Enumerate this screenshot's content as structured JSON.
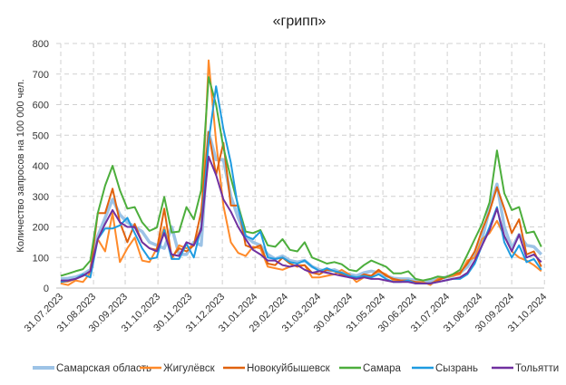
{
  "chart_data": {
    "type": "line",
    "title": "«грипп»",
    "ylabel": "Количество запросов на 100 000 чел.",
    "xlabel": "",
    "ylim": [
      0,
      800
    ],
    "yticks": [
      "0",
      "100",
      "200",
      "300",
      "400",
      "500",
      "600",
      "700",
      "800"
    ],
    "x_start": "2023-07-31",
    "x_step_days": 7,
    "xtick_labels": [
      {
        "label": "31.07.2023",
        "date": "2023-07-31"
      },
      {
        "label": "31.08.2023",
        "date": "2023-08-31"
      },
      {
        "label": "30.09.2023",
        "date": "2023-09-30"
      },
      {
        "label": "31.10.2023",
        "date": "2023-10-31"
      },
      {
        "label": "30.11.2023",
        "date": "2023-11-30"
      },
      {
        "label": "31.12.2023",
        "date": "2023-12-31"
      },
      {
        "label": "31.01.2024",
        "date": "2024-01-31"
      },
      {
        "label": "29.02.2024",
        "date": "2024-02-29"
      },
      {
        "label": "31.03.2024",
        "date": "2024-03-31"
      },
      {
        "label": "30.04.2024",
        "date": "2024-04-30"
      },
      {
        "label": "31.05.2024",
        "date": "2024-05-31"
      },
      {
        "label": "30.06.2024",
        "date": "2024-06-30"
      },
      {
        "label": "31.07.2024",
        "date": "2024-07-31"
      },
      {
        "label": "31.08.2024",
        "date": "2024-08-31"
      },
      {
        "label": "30.09.2024",
        "date": "2024-09-30"
      },
      {
        "label": "31.10.2024",
        "date": "2024-10-31"
      }
    ],
    "grid": true,
    "legend_position": "bottom",
    "series": [
      {
        "name": "Самарская область",
        "color": "#9dc3e6",
        "values": [
          30,
          32,
          36,
          45,
          60,
          170,
          230,
          290,
          240,
          215,
          200,
          185,
          150,
          140,
          130,
          200,
          110,
          110,
          150,
          140,
          510,
          420,
          420,
          300,
          230,
          170,
          150,
          140,
          110,
          95,
          105,
          90,
          85,
          90,
          70,
          60,
          55,
          60,
          50,
          45,
          40,
          50,
          55,
          50,
          40,
          32,
          30,
          30,
          25,
          20,
          22,
          30,
          35,
          40,
          50,
          70,
          110,
          160,
          260,
          340,
          200,
          130,
          175,
          140,
          135,
          110
        ]
      },
      {
        "name": "Жигулёвск",
        "color": "#ff8a2a",
        "values": [
          15,
          10,
          25,
          20,
          50,
          160,
          120,
          245,
          85,
          130,
          165,
          90,
          85,
          130,
          200,
          95,
          140,
          130,
          140,
          200,
          745,
          480,
          270,
          150,
          115,
          105,
          135,
          130,
          70,
          65,
          60,
          70,
          75,
          75,
          35,
          35,
          40,
          45,
          60,
          45,
          20,
          35,
          40,
          55,
          45,
          25,
          25,
          25,
          20,
          20,
          10,
          30,
          35,
          40,
          45,
          90,
          100,
          160,
          180,
          220,
          170,
          120,
          100,
          90,
          75,
          55
        ]
      },
      {
        "name": "Новокуйбышевск",
        "color": "#e0620e",
        "values": [
          20,
          22,
          30,
          40,
          55,
          245,
          245,
          325,
          215,
          150,
          210,
          150,
          130,
          125,
          260,
          100,
          130,
          120,
          140,
          250,
          510,
          370,
          475,
          270,
          270,
          140,
          130,
          140,
          80,
          75,
          100,
          80,
          70,
          75,
          50,
          45,
          60,
          55,
          45,
          35,
          30,
          45,
          40,
          60,
          40,
          30,
          25,
          25,
          20,
          15,
          15,
          25,
          35,
          45,
          50,
          80,
          120,
          190,
          250,
          330,
          260,
          180,
          225,
          110,
          120,
          70
        ]
      },
      {
        "name": "Самара",
        "color": "#4cae3c",
        "values": [
          40,
          47,
          55,
          62,
          90,
          245,
          335,
          400,
          320,
          260,
          265,
          215,
          187,
          198,
          298,
          182,
          185,
          265,
          225,
          320,
          690,
          600,
          460,
          360,
          270,
          185,
          180,
          190,
          140,
          135,
          160,
          125,
          120,
          150,
          100,
          90,
          80,
          85,
          78,
          60,
          55,
          75,
          90,
          80,
          70,
          48,
          48,
          55,
          30,
          25,
          30,
          38,
          35,
          45,
          60,
          110,
          160,
          210,
          280,
          450,
          310,
          255,
          265,
          180,
          185,
          135
        ]
      },
      {
        "name": "Сызрань",
        "color": "#1e9be0",
        "values": [
          20,
          25,
          30,
          45,
          35,
          160,
          195,
          195,
          205,
          230,
          180,
          130,
          95,
          100,
          190,
          95,
          95,
          145,
          100,
          200,
          480,
          660,
          520,
          410,
          260,
          170,
          160,
          185,
          100,
          95,
          100,
          85,
          80,
          90,
          70,
          55,
          65,
          55,
          50,
          40,
          35,
          40,
          35,
          45,
          30,
          20,
          20,
          25,
          15,
          15,
          15,
          20,
          25,
          30,
          30,
          45,
          80,
          140,
          200,
          265,
          150,
          100,
          140,
          85,
          95,
          60
        ]
      },
      {
        "name": "Тольятти",
        "color": "#7030a0",
        "values": [
          25,
          25,
          30,
          40,
          55,
          160,
          210,
          255,
          215,
          200,
          200,
          150,
          130,
          120,
          180,
          110,
          105,
          150,
          140,
          190,
          430,
          370,
          290,
          250,
          200,
          160,
          125,
          110,
          90,
          90,
          75,
          70,
          75,
          60,
          50,
          55,
          50,
          45,
          40,
          35,
          30,
          35,
          30,
          30,
          25,
          20,
          20,
          20,
          15,
          15,
          15,
          20,
          25,
          30,
          35,
          50,
          90,
          140,
          190,
          260,
          170,
          120,
          175,
          100,
          110,
          85
        ]
      }
    ]
  }
}
